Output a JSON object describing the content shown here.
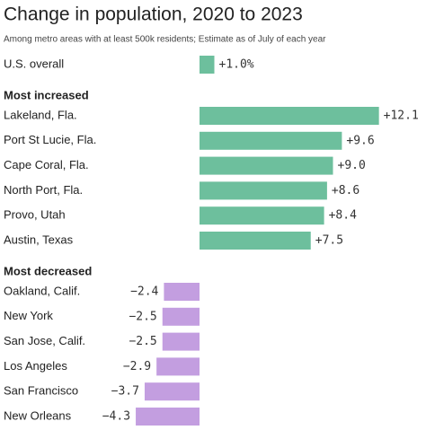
{
  "chart_data": {
    "type": "bar",
    "title": "Change in population, 2020 to 2023",
    "subtitle": "Among metro areas with at least 500k residents; Estimate as of July of each year",
    "groups": [
      {
        "color": "#6dbf9d",
        "categories": [
          "U.S. overall"
        ],
        "values": [
          1.0
        ],
        "value_labels": [
          "+1.0%"
        ]
      },
      {
        "name": "Most increased",
        "color": "#6dbf9d",
        "categories": [
          "Lakeland, Fla.",
          "Port St Lucie, Fla.",
          "Cape Coral, Fla.",
          "North Port, Fla.",
          "Provo, Utah",
          "Austin, Texas"
        ],
        "values": [
          12.1,
          9.6,
          9.0,
          8.6,
          8.4,
          7.5
        ],
        "value_labels": [
          "+12.1",
          "+9.6",
          "+9.0",
          "+8.6",
          "+8.4",
          "+7.5"
        ]
      },
      {
        "name": "Most decreased",
        "color": "#c39ee0",
        "categories": [
          "Oakland, Calif.",
          "New York",
          "San Jose, Calif.",
          "Los Angeles",
          "San Francisco",
          "New Orleans"
        ],
        "values": [
          -2.4,
          -2.5,
          -2.5,
          -2.9,
          -3.7,
          -4.3
        ],
        "value_labels": [
          "−2.4",
          "−2.5",
          "−2.5",
          "−2.9",
          "−3.7",
          "−4.3"
        ]
      }
    ]
  }
}
